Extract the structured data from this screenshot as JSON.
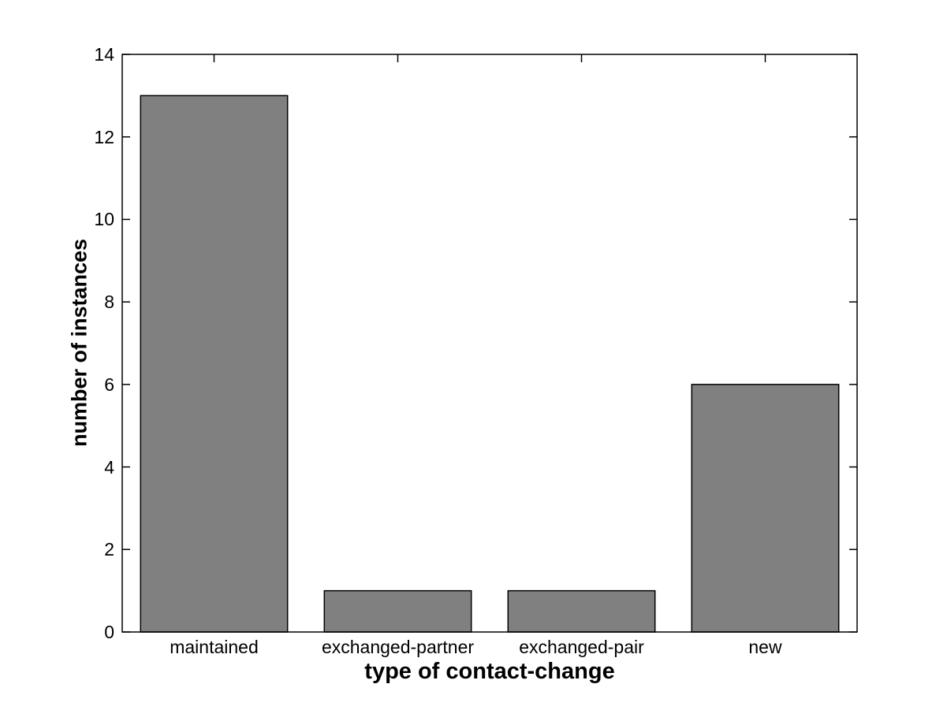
{
  "figure": {
    "background_color": "#ffffff"
  },
  "chart_data": {
    "type": "bar",
    "title": "",
    "categories": [
      "maintained",
      "exchanged-partner",
      "exchanged-pair",
      "new"
    ],
    "values": [
      13,
      1,
      1,
      6
    ],
    "xlabel": "type of contact-change",
    "ylabel": "number of instances",
    "ylim": [
      0,
      14
    ],
    "yticks": [
      0,
      2,
      4,
      6,
      8,
      10,
      12,
      14
    ],
    "bar_color": "#808080",
    "bar_edge_color": "#000000",
    "axis_color": "#000000",
    "bar_width_fraction": 0.8,
    "grid": false,
    "legend": "none",
    "tick_direction": "in"
  }
}
